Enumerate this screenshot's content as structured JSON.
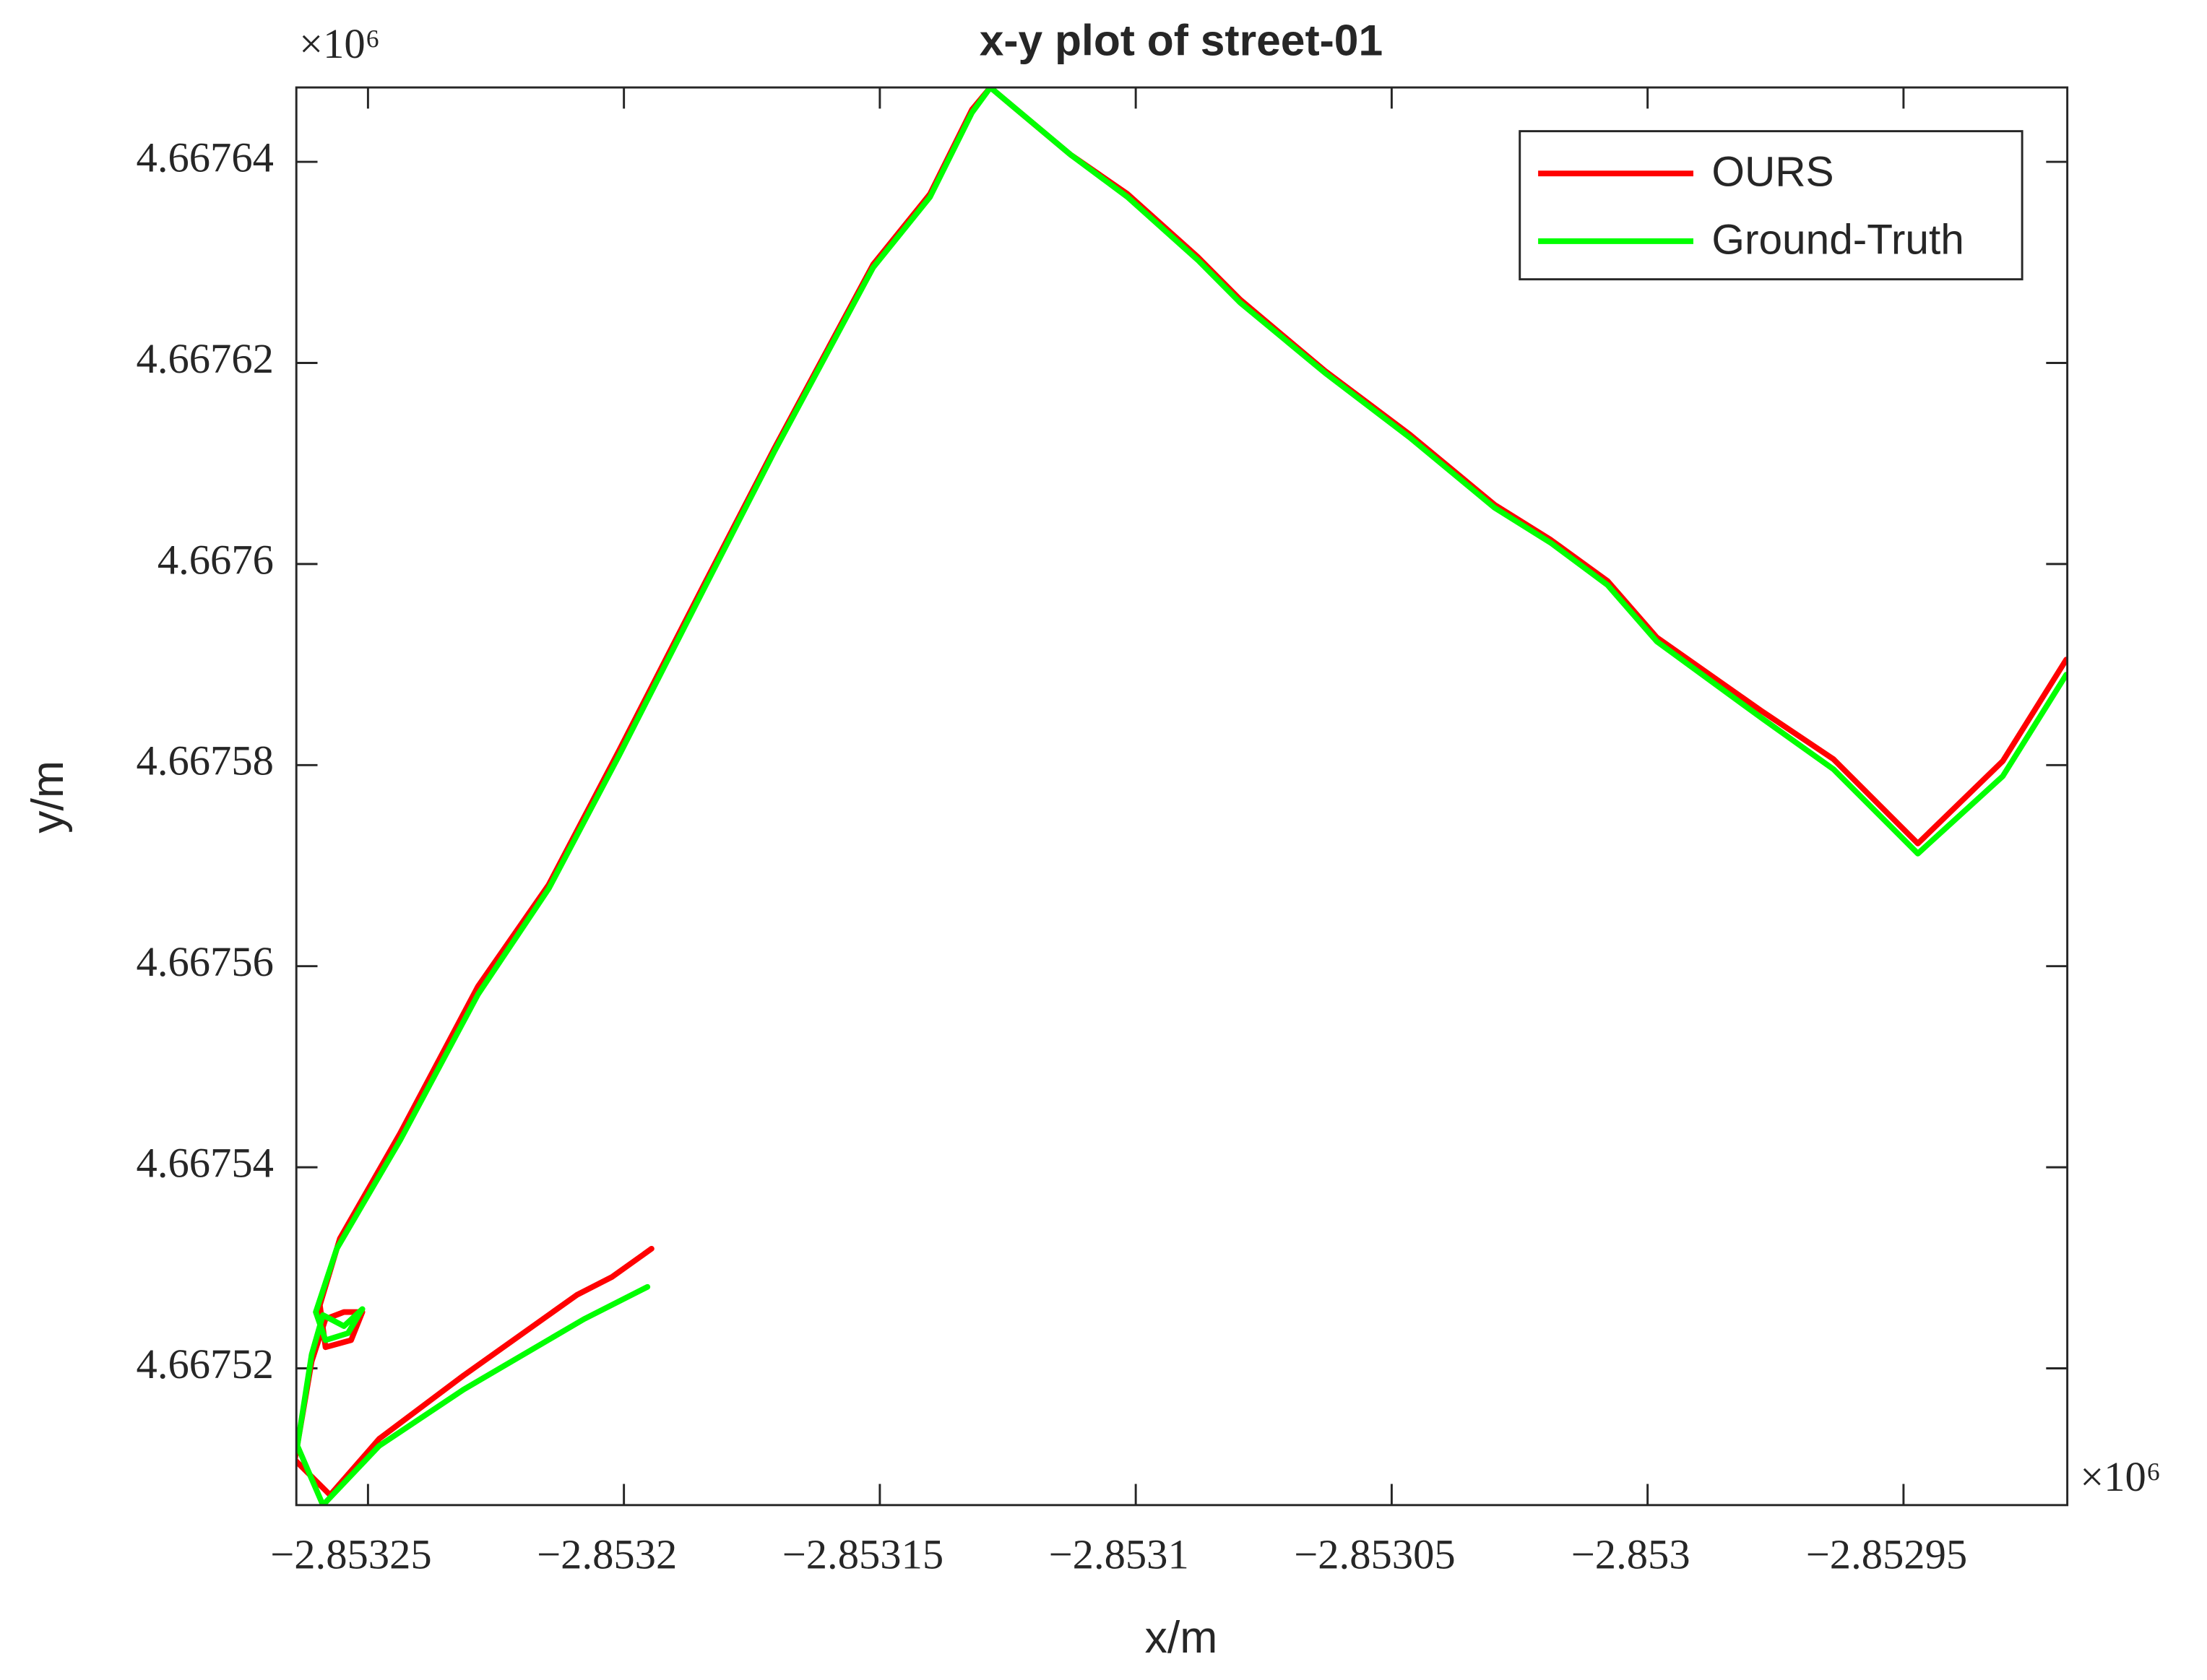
{
  "chart_data": {
    "type": "line",
    "title": "x-y plot of street-01",
    "x_label": "x/m",
    "y_label": "y/m",
    "x_scale_label": "×10⁶",
    "y_scale_label": "×10⁶",
    "xlim": [
      -2.853264,
      -2.852918
    ],
    "ylim": [
      4.6675064,
      4.6676474
    ],
    "xticks": [
      {
        "value": -2.85325,
        "label": "−2.85325"
      },
      {
        "value": -2.8532,
        "label": "−2.8532"
      },
      {
        "value": -2.85315,
        "label": "−2.85315"
      },
      {
        "value": -2.8531,
        "label": "−2.8531"
      },
      {
        "value": -2.85305,
        "label": "−2.85305"
      },
      {
        "value": -2.853,
        "label": "−2.853"
      },
      {
        "value": -2.85295,
        "label": "−2.85295"
      }
    ],
    "yticks": [
      4.66752,
      4.66754,
      4.66756,
      4.66758,
      4.6676,
      4.66762,
      4.66764
    ],
    "grid": false,
    "legend": "northeast",
    "series": [
      {
        "name": "OURS",
        "color": "#ff0000",
        "x": [
          -2.8531946,
          -2.8532023,
          -2.8532092,
          -2.8532313,
          -2.8532478,
          -2.8532574,
          -2.8532643,
          -2.853261,
          -2.8532583,
          -2.8532547,
          -2.8532511,
          -2.8532533,
          -2.8532583,
          -2.8532594,
          -2.8532555,
          -2.8532437,
          -2.8532285,
          -2.8532147,
          -2.8532009,
          -2.8531844,
          -2.8531706,
          -2.8531513,
          -2.8531402,
          -2.853132,
          -2.8531284,
          -2.8531242,
          -2.8531127,
          -2.8531016,
          -2.8530878,
          -2.8530796,
          -2.853063,
          -2.8530465,
          -2.8530299,
          -2.8530189,
          -2.8530078,
          -2.8529982,
          -2.8529775,
          -2.8529637,
          -2.8529472,
          -2.8529306,
          -2.8529182
        ],
        "values": [
          4.6675319,
          4.6675291,
          4.6675273,
          4.6675193,
          4.667513,
          4.6675074,
          4.6675109,
          4.6675207,
          4.6675249,
          4.6675256,
          4.6675256,
          4.6675228,
          4.6675221,
          4.6675263,
          4.6675329,
          4.6675434,
          4.667558,
          4.6675681,
          4.6675815,
          4.6675979,
          4.6676115,
          4.6676298,
          4.6676368,
          4.6676452,
          4.6676474,
          4.6676456,
          4.6676407,
          4.6676368,
          4.6676305,
          4.6676263,
          4.6676192,
          4.6676129,
          4.6676059,
          4.6676024,
          4.6675983,
          4.6675927,
          4.6675853,
          4.6675806,
          4.6675722,
          4.6675804,
          4.6675905
        ]
      },
      {
        "name": "Ground-Truth",
        "color": "#00ff00",
        "x": [
          -2.8531954,
          -2.8532078,
          -2.8532313,
          -2.8532478,
          -2.8532588,
          -2.8532638,
          -2.853261,
          -2.8532588,
          -2.8532547,
          -2.8532511,
          -2.8532539,
          -2.8532583,
          -2.8532602,
          -2.8532561,
          -2.8532437,
          -2.8532285,
          -2.8532147,
          -2.8532009,
          -2.8531844,
          -2.8531706,
          -2.8531513,
          -2.8531402,
          -2.853132,
          -2.8531284,
          -2.8531242,
          -2.8531127,
          -2.8531016,
          -2.8530878,
          -2.8530796,
          -2.853063,
          -2.8530465,
          -2.8530299,
          -2.8530189,
          -2.8530078,
          -2.8529982,
          -2.8529775,
          -2.8529637,
          -2.8529472,
          -2.8529306,
          -2.8529182
        ],
        "values": [
          4.6675281,
          4.6675249,
          4.6675179,
          4.6675123,
          4.6675064,
          4.6675123,
          4.6675214,
          4.6675253,
          4.6675242,
          4.6675259,
          4.6675235,
          4.6675228,
          4.6675256,
          4.6675319,
          4.6675427,
          4.6675572,
          4.6675677,
          4.667581,
          4.6675975,
          4.6676112,
          4.6676295,
          4.6676365,
          4.6676449,
          4.6676474,
          4.6676456,
          4.6676407,
          4.6676365,
          4.6676302,
          4.667626,
          4.667619,
          4.6676126,
          4.6676056,
          4.6676021,
          4.6675979,
          4.6675923,
          4.6675846,
          4.6675796,
          4.6675712,
          4.6675789,
          4.667589
        ]
      }
    ]
  }
}
